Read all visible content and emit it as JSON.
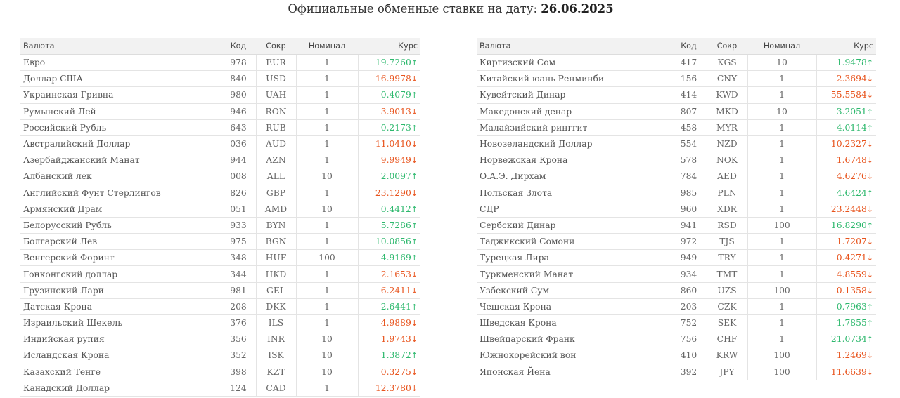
{
  "header": {
    "title_prefix": "Официальные обменные ставки на дату: ",
    "date": "26.06.2025"
  },
  "columns": {
    "name": "Валюта",
    "code": "Код",
    "abbr": "Сокр",
    "nominal": "Номинал",
    "rate": "Курс"
  },
  "colors": {
    "up": "#2db86d",
    "down": "#e8531c",
    "header_bg": "#f2f2f2"
  },
  "arrows": {
    "up": "↑",
    "down": "↓"
  },
  "left_rows": [
    {
      "name": "Евро",
      "code": "978",
      "abbr": "EUR",
      "nominal": "1",
      "rate": "19.7260",
      "trend": "up"
    },
    {
      "name": "Доллар США",
      "code": "840",
      "abbr": "USD",
      "nominal": "1",
      "rate": "16.9978",
      "trend": "down"
    },
    {
      "name": "Украинская Гривна",
      "code": "980",
      "abbr": "UAH",
      "nominal": "1",
      "rate": "0.4079",
      "trend": "up"
    },
    {
      "name": "Румынский Лей",
      "code": "946",
      "abbr": "RON",
      "nominal": "1",
      "rate": "3.9013",
      "trend": "down"
    },
    {
      "name": "Российский Рубль",
      "code": "643",
      "abbr": "RUB",
      "nominal": "1",
      "rate": "0.2173",
      "trend": "up"
    },
    {
      "name": "Австралийский Доллар",
      "code": "036",
      "abbr": "AUD",
      "nominal": "1",
      "rate": "11.0410",
      "trend": "down"
    },
    {
      "name": "Азербайджанский Манат",
      "code": "944",
      "abbr": "AZN",
      "nominal": "1",
      "rate": "9.9949",
      "trend": "down"
    },
    {
      "name": "Албанский лек",
      "code": "008",
      "abbr": "ALL",
      "nominal": "10",
      "rate": "2.0097",
      "trend": "up"
    },
    {
      "name": "Английский Фунт Стерлингов",
      "code": "826",
      "abbr": "GBP",
      "nominal": "1",
      "rate": "23.1290",
      "trend": "down"
    },
    {
      "name": "Армянский Драм",
      "code": "051",
      "abbr": "AMD",
      "nominal": "10",
      "rate": "0.4412",
      "trend": "up"
    },
    {
      "name": "Белорусский Рубль",
      "code": "933",
      "abbr": "BYN",
      "nominal": "1",
      "rate": "5.7286",
      "trend": "up"
    },
    {
      "name": "Болгарский Лев",
      "code": "975",
      "abbr": "BGN",
      "nominal": "1",
      "rate": "10.0856",
      "trend": "up"
    },
    {
      "name": "Венгерский Форинт",
      "code": "348",
      "abbr": "HUF",
      "nominal": "100",
      "rate": "4.9169",
      "trend": "up"
    },
    {
      "name": "Гонконгский доллар",
      "code": "344",
      "abbr": "HKD",
      "nominal": "1",
      "rate": "2.1653",
      "trend": "down"
    },
    {
      "name": "Грузинский Лари",
      "code": "981",
      "abbr": "GEL",
      "nominal": "1",
      "rate": "6.2411",
      "trend": "down"
    },
    {
      "name": "Датская Крона",
      "code": "208",
      "abbr": "DKK",
      "nominal": "1",
      "rate": "2.6441",
      "trend": "up"
    },
    {
      "name": "Израильский Шекель",
      "code": "376",
      "abbr": "ILS",
      "nominal": "1",
      "rate": "4.9889",
      "trend": "down"
    },
    {
      "name": "Индийская рупия",
      "code": "356",
      "abbr": "INR",
      "nominal": "10",
      "rate": "1.9743",
      "trend": "down"
    },
    {
      "name": "Исландская Крона",
      "code": "352",
      "abbr": "ISK",
      "nominal": "10",
      "rate": "1.3872",
      "trend": "up"
    },
    {
      "name": "Казахский Тенге",
      "code": "398",
      "abbr": "KZT",
      "nominal": "10",
      "rate": "0.3275",
      "trend": "down"
    },
    {
      "name": "Канадский Доллар",
      "code": "124",
      "abbr": "CAD",
      "nominal": "1",
      "rate": "12.3780",
      "trend": "down"
    }
  ],
  "right_rows": [
    {
      "name": "Киргизский Сом",
      "code": "417",
      "abbr": "KGS",
      "nominal": "10",
      "rate": "1.9478",
      "trend": "up"
    },
    {
      "name": "Китайский юань Ренминби",
      "code": "156",
      "abbr": "CNY",
      "nominal": "1",
      "rate": "2.3694",
      "trend": "down"
    },
    {
      "name": "Кувейтский Динар",
      "code": "414",
      "abbr": "KWD",
      "nominal": "1",
      "rate": "55.5584",
      "trend": "down"
    },
    {
      "name": "Македонский денар",
      "code": "807",
      "abbr": "MKD",
      "nominal": "10",
      "rate": "3.2051",
      "trend": "up"
    },
    {
      "name": "Малайзийский ринггит",
      "code": "458",
      "abbr": "MYR",
      "nominal": "1",
      "rate": "4.0114",
      "trend": "up"
    },
    {
      "name": "Новозеландский Доллар",
      "code": "554",
      "abbr": "NZD",
      "nominal": "1",
      "rate": "10.2327",
      "trend": "down"
    },
    {
      "name": "Норвежская Крона",
      "code": "578",
      "abbr": "NOK",
      "nominal": "1",
      "rate": "1.6748",
      "trend": "down"
    },
    {
      "name": "О.А.Э. Дирхам",
      "code": "784",
      "abbr": "AED",
      "nominal": "1",
      "rate": "4.6276",
      "trend": "down"
    },
    {
      "name": "Польская Злота",
      "code": "985",
      "abbr": "PLN",
      "nominal": "1",
      "rate": "4.6424",
      "trend": "up"
    },
    {
      "name": "СДР",
      "code": "960",
      "abbr": "XDR",
      "nominal": "1",
      "rate": "23.2448",
      "trend": "down"
    },
    {
      "name": "Сербский Динар",
      "code": "941",
      "abbr": "RSD",
      "nominal": "100",
      "rate": "16.8290",
      "trend": "up"
    },
    {
      "name": "Таджикский Сомони",
      "code": "972",
      "abbr": "TJS",
      "nominal": "1",
      "rate": "1.7207",
      "trend": "down"
    },
    {
      "name": "Турецкая Лира",
      "code": "949",
      "abbr": "TRY",
      "nominal": "1",
      "rate": "0.4271",
      "trend": "down"
    },
    {
      "name": "Туркменский Манат",
      "code": "934",
      "abbr": "TMT",
      "nominal": "1",
      "rate": "4.8559",
      "trend": "down"
    },
    {
      "name": "Узбекский Сум",
      "code": "860",
      "abbr": "UZS",
      "nominal": "100",
      "rate": "0.1358",
      "trend": "down"
    },
    {
      "name": "Чешская Крона",
      "code": "203",
      "abbr": "CZK",
      "nominal": "1",
      "rate": "0.7963",
      "trend": "up"
    },
    {
      "name": "Шведская Крона",
      "code": "752",
      "abbr": "SEK",
      "nominal": "1",
      "rate": "1.7855",
      "trend": "up"
    },
    {
      "name": "Швейцарский Франк",
      "code": "756",
      "abbr": "CHF",
      "nominal": "1",
      "rate": "21.0734",
      "trend": "up"
    },
    {
      "name": "Южнокорейский вон",
      "code": "410",
      "abbr": "KRW",
      "nominal": "100",
      "rate": "1.2469",
      "trend": "down"
    },
    {
      "name": "Японская Йена",
      "code": "392",
      "abbr": "JPY",
      "nominal": "100",
      "rate": "11.6639",
      "trend": "down"
    }
  ]
}
